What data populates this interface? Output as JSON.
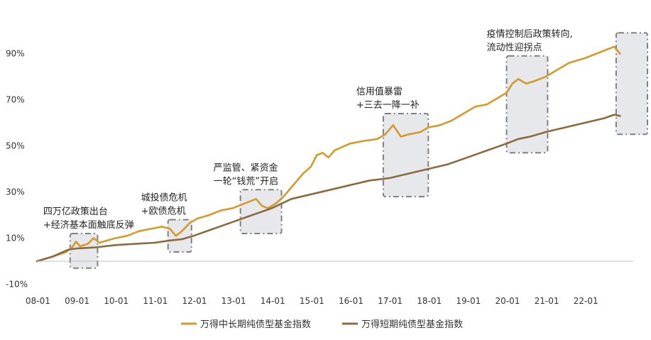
{
  "chart_data": {
    "type": "line",
    "title": "",
    "xlabel": "",
    "ylabel": "",
    "ylim": [
      -0.1,
      1.0
    ],
    "x_ticks": [
      "08-01",
      "09-01",
      "10-01",
      "11-01",
      "12-01",
      "13-01",
      "14-01",
      "15-01",
      "16-01",
      "17-01",
      "18-01",
      "19-01",
      "20-01",
      "21-01",
      "22-01"
    ],
    "y_ticks": [
      "-10%",
      "10%",
      "30%",
      "50%",
      "70%",
      "90%"
    ],
    "legend_position": "bottom",
    "colors": {
      "long": "#d49a2a",
      "short": "#8b6a3e",
      "box_fill": "#e7e8ec",
      "box_border": "#808080"
    },
    "series": [
      {
        "name": "万得中长期纯债型基金指数",
        "x": [
          2008.0,
          2008.4,
          2008.75,
          2008.9,
          2009.0,
          2009.1,
          2009.3,
          2009.45,
          2009.6,
          2009.8,
          2010.0,
          2010.3,
          2010.6,
          2010.9,
          2011.2,
          2011.4,
          2011.55,
          2011.7,
          2011.9,
          2012.1,
          2012.4,
          2012.7,
          2013.0,
          2013.3,
          2013.6,
          2013.75,
          2013.9,
          2014.1,
          2014.3,
          2014.5,
          2014.65,
          2014.8,
          2015.0,
          2015.15,
          2015.3,
          2015.45,
          2015.6,
          2016.0,
          2016.3,
          2016.7,
          2016.9,
          2017.0,
          2017.1,
          2017.3,
          2017.5,
          2017.8,
          2018.0,
          2018.3,
          2018.6,
          2018.9,
          2019.2,
          2019.5,
          2019.8,
          2020.0,
          2020.15,
          2020.3,
          2020.5,
          2020.7,
          2021.0,
          2021.3,
          2021.6,
          2022.0,
          2022.3,
          2022.6,
          2022.75,
          2022.9
        ],
        "values": [
          0.0,
          0.02,
          0.04,
          0.06,
          0.085,
          0.065,
          0.075,
          0.1,
          0.08,
          0.09,
          0.1,
          0.11,
          0.13,
          0.14,
          0.15,
          0.14,
          0.11,
          0.13,
          0.165,
          0.185,
          0.2,
          0.22,
          0.23,
          0.25,
          0.27,
          0.24,
          0.23,
          0.25,
          0.28,
          0.32,
          0.35,
          0.38,
          0.41,
          0.46,
          0.47,
          0.45,
          0.48,
          0.51,
          0.52,
          0.53,
          0.55,
          0.57,
          0.59,
          0.54,
          0.55,
          0.56,
          0.58,
          0.59,
          0.61,
          0.64,
          0.67,
          0.68,
          0.71,
          0.73,
          0.77,
          0.79,
          0.77,
          0.78,
          0.8,
          0.83,
          0.86,
          0.88,
          0.9,
          0.92,
          0.93,
          0.9
        ]
      },
      {
        "name": "万得短期纯债型基金指数",
        "x": [
          2008.0,
          2008.4,
          2008.8,
          2009.0,
          2009.5,
          2010.0,
          2010.5,
          2011.0,
          2011.4,
          2011.7,
          2012.0,
          2012.5,
          2013.0,
          2013.5,
          2014.0,
          2014.5,
          2015.0,
          2015.5,
          2016.0,
          2016.5,
          2017.0,
          2017.5,
          2018.0,
          2018.5,
          2019.0,
          2019.5,
          2020.0,
          2020.3,
          2020.6,
          2021.0,
          2021.5,
          2022.0,
          2022.5,
          2022.75,
          2022.9
        ],
        "values": [
          0.0,
          0.02,
          0.05,
          0.055,
          0.06,
          0.07,
          0.075,
          0.08,
          0.09,
          0.095,
          0.11,
          0.14,
          0.17,
          0.2,
          0.23,
          0.27,
          0.29,
          0.31,
          0.33,
          0.35,
          0.36,
          0.38,
          0.4,
          0.42,
          0.45,
          0.48,
          0.51,
          0.53,
          0.54,
          0.56,
          0.58,
          0.6,
          0.62,
          0.635,
          0.63
        ]
      }
    ],
    "annotations": [
      {
        "lines": [
          "四万亿政策出台",
          "+经济基本面触底反弹"
        ],
        "x_range": [
          2008.85,
          2009.55
        ],
        "y_range": [
          -0.03,
          0.12
        ]
      },
      {
        "lines": [
          "城投债危机",
          "+欧债危机"
        ],
        "x_range": [
          2011.35,
          2011.95
        ],
        "y_range": [
          0.04,
          0.18
        ]
      },
      {
        "lines": [
          "严监管、紧资金",
          "一轮“钱荒”开启"
        ],
        "x_range": [
          2013.2,
          2014.25
        ],
        "y_range": [
          0.12,
          0.31
        ]
      },
      {
        "lines": [
          "信用值暴雷",
          "+三去一降一补"
        ],
        "x_range": [
          2016.85,
          2018.0
        ],
        "y_range": [
          0.28,
          0.64
        ]
      },
      {
        "lines": [
          "疫情控制后政策转向,",
          "流动性迎拐点"
        ],
        "x_range": [
          2020.0,
          2021.05
        ],
        "y_range": [
          0.47,
          0.89
        ]
      },
      {
        "lines": [],
        "x_range": [
          2022.8,
          2023.6
        ],
        "y_range": [
          0.55,
          0.99
        ]
      }
    ]
  }
}
